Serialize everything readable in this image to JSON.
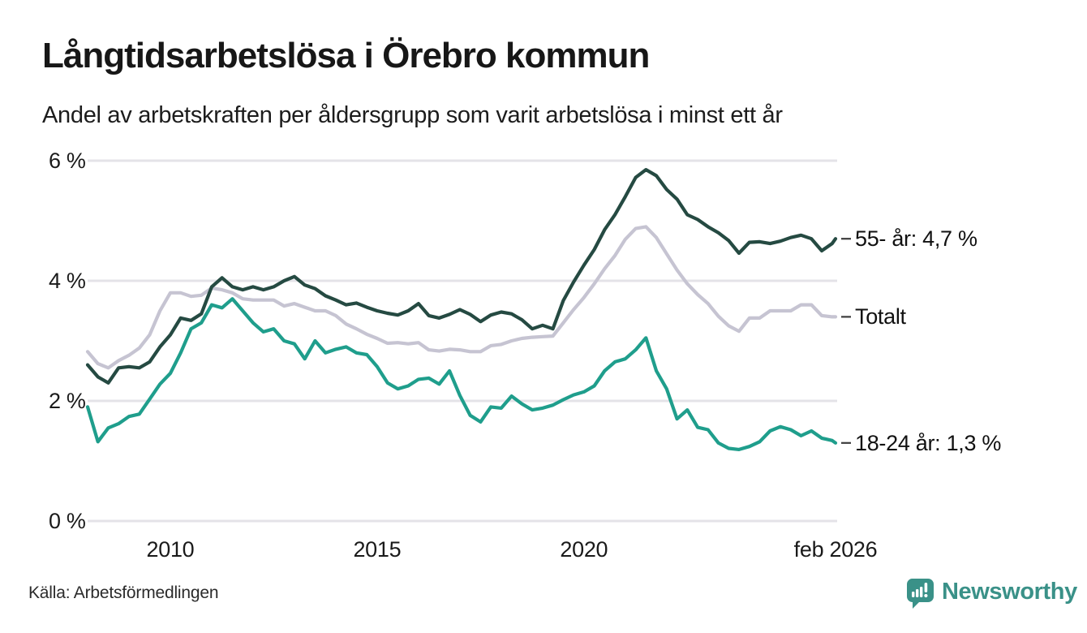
{
  "header": {
    "title": "Långtidsarbetslösa i Örebro kommun",
    "subtitle": "Andel av arbetskraften per åldersgrupp som varit arbetslösa i minst ett år"
  },
  "footer": {
    "source": "Källa: Arbetsförmedlingen",
    "brand": "Newsworthy"
  },
  "colors": {
    "series_55": "#254a42",
    "series_total": "#c6c4d2",
    "series_18_24": "#1f9e8c",
    "gridline": "#e4e3e8",
    "leader_dash": "#3c3c3c",
    "text": "#171717",
    "brand_teal": "#3a9188"
  },
  "chart_data": {
    "type": "line",
    "title": "Långtidsarbetslösa i Örebro kommun",
    "subtitle": "Andel av arbetskraften per åldersgrupp som varit arbetslösa i minst ett år",
    "xlabel": "",
    "ylabel": "",
    "unit": "%",
    "grid": "horizontal",
    "legend_position": "line-end-labels-right",
    "xlim": [
      2008.0,
      2026.083
    ],
    "ylim": [
      0,
      6
    ],
    "yticks": [
      {
        "value": 0,
        "label": "0 %"
      },
      {
        "value": 2,
        "label": "2 %"
      },
      {
        "value": 4,
        "label": "4 %"
      },
      {
        "value": 6,
        "label": "6 %"
      }
    ],
    "xticks": [
      {
        "value": 2010,
        "label": "2010"
      },
      {
        "value": 2015,
        "label": "2015"
      },
      {
        "value": 2020,
        "label": "2020"
      },
      {
        "value": 2026.083,
        "label": "feb 2026"
      }
    ],
    "x": [
      2008.0,
      2008.25,
      2008.5,
      2008.75,
      2009.0,
      2009.25,
      2009.5,
      2009.75,
      2010.0,
      2010.25,
      2010.5,
      2010.75,
      2011.0,
      2011.25,
      2011.5,
      2011.75,
      2012.0,
      2012.25,
      2012.5,
      2012.75,
      2013.0,
      2013.25,
      2013.5,
      2013.75,
      2014.0,
      2014.25,
      2014.5,
      2014.75,
      2015.0,
      2015.25,
      2015.5,
      2015.75,
      2016.0,
      2016.25,
      2016.5,
      2016.75,
      2017.0,
      2017.25,
      2017.5,
      2017.75,
      2018.0,
      2018.25,
      2018.5,
      2018.75,
      2019.0,
      2019.25,
      2019.5,
      2019.75,
      2020.0,
      2020.25,
      2020.5,
      2020.75,
      2021.0,
      2021.25,
      2021.5,
      2021.75,
      2022.0,
      2022.25,
      2022.5,
      2022.75,
      2023.0,
      2023.25,
      2023.5,
      2023.75,
      2024.0,
      2024.25,
      2024.5,
      2024.75,
      2025.0,
      2025.25,
      2025.5,
      2025.75,
      2026.0,
      2026.083
    ],
    "series": [
      {
        "name": "Totalt",
        "end_label": "Totalt",
        "latest_value": 3.4,
        "color": "#c6c4d2",
        "values": [
          2.82,
          2.62,
          2.55,
          2.67,
          2.76,
          2.88,
          3.1,
          3.5,
          3.8,
          3.8,
          3.74,
          3.76,
          3.88,
          3.85,
          3.8,
          3.7,
          3.68,
          3.68,
          3.68,
          3.58,
          3.62,
          3.56,
          3.5,
          3.5,
          3.42,
          3.28,
          3.2,
          3.11,
          3.04,
          2.96,
          2.97,
          2.95,
          2.97,
          2.85,
          2.83,
          2.86,
          2.85,
          2.82,
          2.82,
          2.92,
          2.94,
          3.0,
          3.04,
          3.06,
          3.07,
          3.08,
          3.3,
          3.52,
          3.72,
          3.95,
          4.2,
          4.42,
          4.69,
          4.87,
          4.9,
          4.72,
          4.45,
          4.18,
          3.95,
          3.77,
          3.62,
          3.41,
          3.25,
          3.16,
          3.38,
          3.38,
          3.5,
          3.5,
          3.5,
          3.6,
          3.6,
          3.42,
          3.4,
          3.4
        ]
      },
      {
        "name": "55- år",
        "end_label": "55- år: 4,7 %",
        "latest_value": 4.7,
        "color": "#254a42",
        "values": [
          2.6,
          2.4,
          2.3,
          2.55,
          2.57,
          2.55,
          2.65,
          2.9,
          3.1,
          3.38,
          3.34,
          3.45,
          3.9,
          4.05,
          3.9,
          3.85,
          3.9,
          3.85,
          3.9,
          4.0,
          4.07,
          3.93,
          3.87,
          3.75,
          3.68,
          3.6,
          3.63,
          3.56,
          3.5,
          3.46,
          3.43,
          3.5,
          3.62,
          3.42,
          3.38,
          3.44,
          3.52,
          3.44,
          3.32,
          3.43,
          3.48,
          3.45,
          3.35,
          3.2,
          3.26,
          3.2,
          3.67,
          3.98,
          4.26,
          4.52,
          4.85,
          5.1,
          5.4,
          5.72,
          5.85,
          5.75,
          5.52,
          5.36,
          5.1,
          5.02,
          4.9,
          4.8,
          4.67,
          4.46,
          4.64,
          4.65,
          4.62,
          4.66,
          4.72,
          4.76,
          4.7,
          4.5,
          4.62,
          4.7
        ]
      },
      {
        "name": "18-24 år",
        "end_label": "18-24 år: 1,3 %",
        "latest_value": 1.3,
        "color": "#1f9e8c",
        "values": [
          1.9,
          1.32,
          1.55,
          1.62,
          1.74,
          1.78,
          2.03,
          2.28,
          2.46,
          2.8,
          3.2,
          3.3,
          3.6,
          3.55,
          3.7,
          3.5,
          3.3,
          3.15,
          3.2,
          3.0,
          2.95,
          2.7,
          3.0,
          2.8,
          2.86,
          2.9,
          2.8,
          2.77,
          2.57,
          2.3,
          2.2,
          2.25,
          2.36,
          2.38,
          2.28,
          2.5,
          2.09,
          1.76,
          1.65,
          1.9,
          1.88,
          2.08,
          1.95,
          1.85,
          1.88,
          1.93,
          2.02,
          2.1,
          2.15,
          2.25,
          2.5,
          2.65,
          2.7,
          2.85,
          3.05,
          2.5,
          2.2,
          1.7,
          1.85,
          1.56,
          1.52,
          1.3,
          1.21,
          1.19,
          1.24,
          1.32,
          1.5,
          1.57,
          1.52,
          1.42,
          1.5,
          1.38,
          1.34,
          1.3
        ]
      }
    ]
  }
}
